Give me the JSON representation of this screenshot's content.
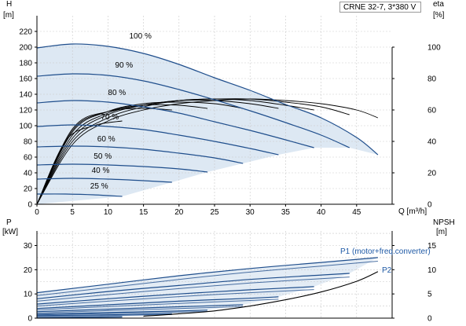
{
  "chart_data": [
    {
      "type": "line",
      "title": "CRNE 32-7, 3*380 V",
      "xlabel": "Q [m³/h]",
      "ylabel": "H\n[m]",
      "y2label": "eta\n[%]",
      "xlim": [
        0,
        50
      ],
      "ylim": [
        0,
        240
      ],
      "y2lim": [
        0,
        120
      ],
      "xticks": [
        "0",
        "5",
        "10",
        "15",
        "20",
        "25",
        "30",
        "35",
        "40",
        "45"
      ],
      "yticks": [
        "0",
        "20",
        "40",
        "60",
        "80",
        "100",
        "120",
        "140",
        "160",
        "180",
        "200",
        "220"
      ],
      "y2ticks": [
        "0",
        "20",
        "40",
        "60",
        "80",
        "100"
      ],
      "grid": true,
      "legend": "none",
      "speed_curves": [
        {
          "label": "100 %",
          "x": [
            0,
            5,
            10,
            15,
            20,
            25,
            30,
            35,
            40,
            45,
            48
          ],
          "y": [
            199,
            204,
            201,
            192,
            178,
            161,
            145,
            127,
            110,
            85,
            63
          ]
        },
        {
          "label": "90 %",
          "x": [
            0,
            5,
            10,
            15,
            20,
            25,
            30,
            35,
            40,
            44
          ],
          "y": [
            163,
            166,
            164,
            157,
            146,
            133,
            119,
            104,
            88,
            72
          ]
        },
        {
          "label": "80 %",
          "x": [
            0,
            5,
            10,
            15,
            20,
            25,
            30,
            35,
            39
          ],
          "y": [
            129,
            132,
            130,
            124,
            116,
            105,
            94,
            82,
            72
          ]
        },
        {
          "label": "70 %",
          "x": [
            0,
            5,
            10,
            15,
            20,
            25,
            30,
            34
          ],
          "y": [
            99,
            101,
            99,
            95,
            88,
            80,
            71,
            63
          ]
        },
        {
          "label": "60 %",
          "x": [
            0,
            5,
            10,
            15,
            20,
            25,
            29
          ],
          "y": [
            73,
            74,
            73,
            70,
            65,
            59,
            52
          ]
        },
        {
          "label": "50 %",
          "x": [
            0,
            5,
            10,
            15,
            20,
            24
          ],
          "y": [
            50,
            51,
            50,
            48,
            45,
            41
          ]
        },
        {
          "label": "40 %",
          "x": [
            0,
            5,
            10,
            15,
            19
          ],
          "y": [
            32,
            33,
            32,
            30,
            28
          ]
        },
        {
          "label": "25 %",
          "x": [
            0,
            4,
            8,
            12
          ],
          "y": [
            13,
            13,
            12,
            10
          ]
        }
      ],
      "efficiency_curves_eta_percent": [
        {
          "x": [
            0,
            5,
            10,
            15,
            20,
            25,
            30,
            35,
            40,
            45,
            48
          ],
          "y": [
            0,
            38,
            53,
            60,
            64,
            66,
            67,
            66,
            64,
            60,
            55
          ]
        },
        {
          "x": [
            0,
            5,
            10,
            15,
            20,
            25,
            30,
            35,
            40,
            44
          ],
          "y": [
            0,
            40,
            55,
            62,
            66,
            67,
            67,
            65,
            62,
            57
          ]
        },
        {
          "x": [
            0,
            5,
            10,
            15,
            20,
            25,
            30,
            35,
            39
          ],
          "y": [
            0,
            42,
            57,
            63,
            66,
            67,
            66,
            63,
            60
          ]
        },
        {
          "x": [
            0,
            5,
            10,
            15,
            20,
            25,
            30,
            34
          ],
          "y": [
            0,
            44,
            58,
            63,
            66,
            66,
            64,
            61
          ]
        },
        {
          "x": [
            0,
            5,
            10,
            15,
            20,
            25,
            29
          ],
          "y": [
            0,
            46,
            59,
            64,
            65,
            64,
            61
          ]
        },
        {
          "x": [
            0,
            5,
            10,
            15,
            20,
            24
          ],
          "y": [
            0,
            47,
            59,
            63,
            63,
            61
          ]
        },
        {
          "x": [
            0,
            5,
            10,
            15,
            19
          ],
          "y": [
            0,
            48,
            59,
            61,
            60
          ]
        },
        {
          "x": [
            0,
            4,
            8,
            12
          ],
          "y": [
            0,
            40,
            50,
            53
          ]
        }
      ]
    },
    {
      "type": "line",
      "xlabel": "",
      "ylabel": "P\n[kW]",
      "y2label": "NPSH\n[m]",
      "xlim": [
        0,
        50
      ],
      "ylim": [
        0,
        36
      ],
      "y2lim": [
        0,
        18
      ],
      "yticks": [
        "0",
        "10",
        "20",
        "30"
      ],
      "y2ticks": [
        "0",
        "5",
        "10",
        "15"
      ],
      "grid": true,
      "annotations": [
        "P1 (motor+freq.converter)",
        "P2"
      ],
      "p1_curves": [
        {
          "x": [
            0,
            10,
            20,
            30,
            40,
            48
          ],
          "y": [
            10.5,
            14,
            17.5,
            20.5,
            23,
            25
          ]
        },
        {
          "x": [
            0,
            10,
            20,
            30,
            40,
            44
          ],
          "y": [
            8,
            11,
            13.5,
            16,
            17.8,
            18.5
          ]
        },
        {
          "x": [
            0,
            10,
            20,
            30,
            39
          ],
          "y": [
            5.8,
            8,
            10,
            11.7,
            13
          ]
        },
        {
          "x": [
            0,
            10,
            20,
            30,
            34
          ],
          "y": [
            4,
            5.5,
            7,
            8.2,
            8.8
          ]
        },
        {
          "x": [
            0,
            10,
            20,
            29
          ],
          "y": [
            2.7,
            3.7,
            4.7,
            5.5
          ]
        },
        {
          "x": [
            0,
            10,
            20,
            24
          ],
          "y": [
            1.7,
            2.3,
            3,
            3.3
          ]
        },
        {
          "x": [
            0,
            10,
            19
          ],
          "y": [
            1,
            1.4,
            1.8
          ]
        },
        {
          "x": [
            0,
            6,
            12
          ],
          "y": [
            0.3,
            0.45,
            0.6
          ]
        }
      ],
      "p2_curves": [
        {
          "x": [
            0,
            10,
            20,
            30,
            40,
            48
          ],
          "y": [
            9.3,
            12.6,
            16,
            19,
            21.5,
            23.5
          ]
        },
        {
          "x": [
            0,
            10,
            20,
            30,
            40,
            44
          ],
          "y": [
            7,
            9.7,
            12.2,
            14.5,
            16.3,
            17
          ]
        },
        {
          "x": [
            0,
            10,
            20,
            30,
            39
          ],
          "y": [
            5,
            7,
            8.9,
            10.5,
            11.8
          ]
        },
        {
          "x": [
            0,
            10,
            20,
            30,
            34
          ],
          "y": [
            3.4,
            4.8,
            6.1,
            7.3,
            7.8
          ]
        },
        {
          "x": [
            0,
            10,
            20,
            29
          ],
          "y": [
            2.2,
            3.1,
            4,
            4.8
          ]
        },
        {
          "x": [
            0,
            10,
            20,
            24
          ],
          "y": [
            1.4,
            1.9,
            2.5,
            2.8
          ]
        },
        {
          "x": [
            0,
            10,
            19
          ],
          "y": [
            0.8,
            1.1,
            1.5
          ]
        },
        {
          "x": [
            0,
            6,
            12
          ],
          "y": [
            0.2,
            0.3,
            0.4
          ]
        }
      ],
      "npsh_curve": {
        "x": [
          15,
          20,
          25,
          30,
          35,
          40,
          45,
          48
        ],
        "y": [
          0.4,
          0.9,
          1.5,
          2.5,
          3.8,
          5.4,
          7.6,
          9.6
        ]
      }
    }
  ]
}
